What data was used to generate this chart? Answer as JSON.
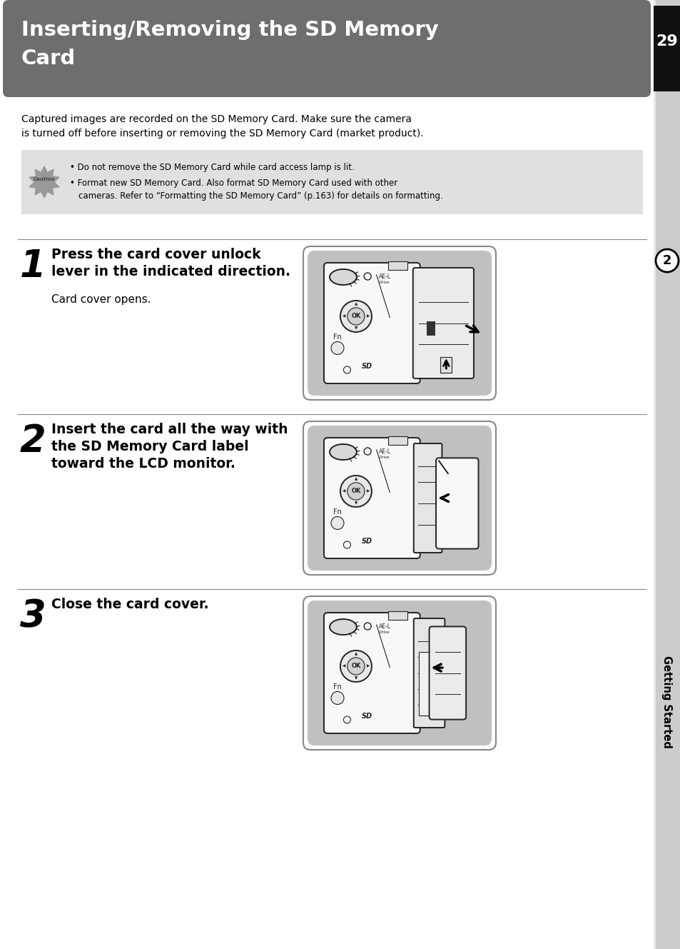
{
  "title_line1": "Inserting/Removing the SD Memory",
  "title_line2": "Card",
  "page_number": "29",
  "header_bg": "#6e6e6e",
  "header_text_color": "#ffffff",
  "page_bg": "#ffffff",
  "sidebar_bg": "#cccccc",
  "caution_bg": "#e0e0e0",
  "intro_text_line1": "Captured images are recorded on the SD Memory Card. Make sure the camera",
  "intro_text_line2": "is turned off before inserting or removing the SD Memory Card (market product).",
  "caution_bullet1": "Do not remove the SD Memory Card while card access lamp is lit.",
  "caution_bullet2a": "Format new SD Memory Card. Also format SD Memory Card used with other",
  "caution_bullet2b": "cameras. Refer to “Formatting the SD Memory Card” (p.163) for details on formatting.",
  "step1_number": "1",
  "step1_bold_line1": "Press the card cover unlock",
  "step1_bold_line2": "lever in the indicated direction.",
  "step1_normal": "Card cover opens.",
  "step2_number": "2",
  "step2_bold_line1": "Insert the card all the way with",
  "step2_bold_line2": "the SD Memory Card label",
  "step2_bold_line3": "toward the LCD monitor.",
  "step3_number": "3",
  "step3_bold": "Close the card cover.",
  "sidebar_label": "Getting Started",
  "circle_number": "2",
  "line_color": "#888888",
  "text_color": "#000000",
  "camera_body_color": "#f8f8f8",
  "camera_outline_color": "#222222",
  "camera_bg_color": "#c0c0c0"
}
